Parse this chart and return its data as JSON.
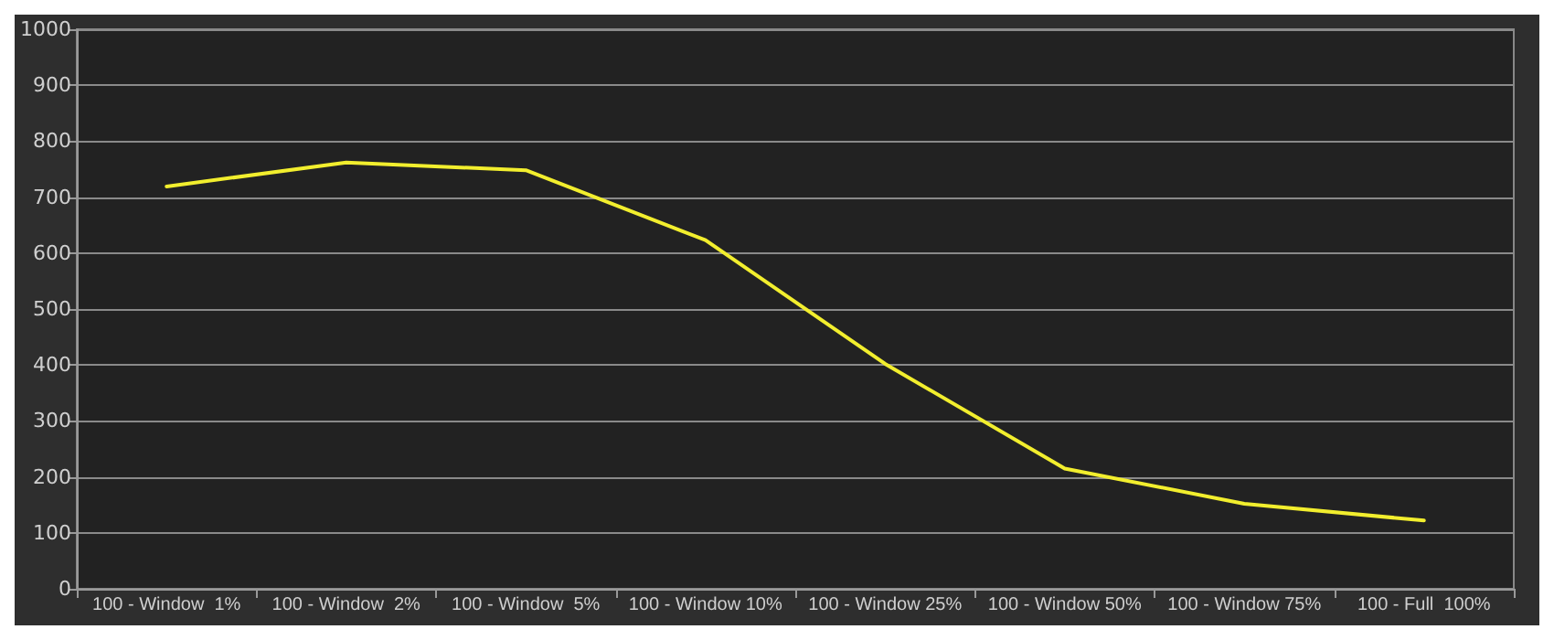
{
  "chart_data": {
    "type": "line",
    "categories": [
      "100 - Window  1%",
      "100 - Window  2%",
      "100 - Window  5%",
      "100 - Window 10%",
      "100 - Window 25%",
      "100 - Window 50%",
      "100 - Window 75%",
      "100 - Full  100%"
    ],
    "series": [
      {
        "color": "#f2ee2e",
        "values": [
          719,
          762,
          748,
          623,
          402,
          215,
          152,
          122
        ]
      }
    ],
    "ylim": [
      0,
      1000
    ],
    "yticks": [
      0,
      100,
      200,
      300,
      400,
      500,
      600,
      700,
      800,
      900,
      1000
    ],
    "grid": "y",
    "marker": "none",
    "line_style": "solid"
  }
}
